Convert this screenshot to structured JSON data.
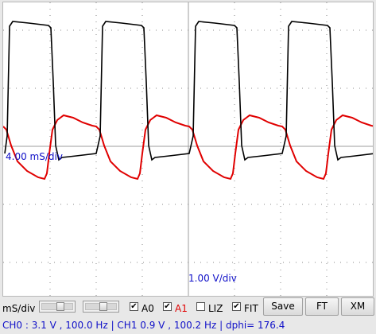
{
  "scope": {
    "x_scale_label": "4.00 mS/div",
    "y_scale_label": "1.00 V/div",
    "grid": true,
    "trace_colors": {
      "A0": "#000000",
      "A1": "#e00000"
    }
  },
  "toolbar": {
    "msdiv_label": "mS/div",
    "checkboxes": [
      {
        "label": "A0",
        "checked": true,
        "color": "#000000"
      },
      {
        "label": "A1",
        "checked": true,
        "color": "#e00000"
      },
      {
        "label": "LIZ",
        "checked": false,
        "color": "#000000"
      },
      {
        "label": "FIT",
        "checked": true,
        "color": "#000000"
      }
    ],
    "buttons": {
      "save": "Save",
      "ft": "FT",
      "xm": "XM"
    }
  },
  "status": {
    "text": "CH0 :  3.1 V , 100.0 Hz | CH1   0.9 V , 100.2 Hz | dphi= 176.4"
  },
  "chart_data": {
    "type": "line",
    "xlabel": "",
    "ylabel": "",
    "grid": true,
    "x_scale_per_div": "4.00 mS/div",
    "y_scale_per_div": "1.00 V/div",
    "series": [
      {
        "name": "A0",
        "frequency_hz": 100.0,
        "amplitude_v": 3.1
      },
      {
        "name": "A1",
        "frequency_hz": 100.2,
        "amplitude_v": 0.9,
        "phase_deg": 176.4
      }
    ]
  }
}
